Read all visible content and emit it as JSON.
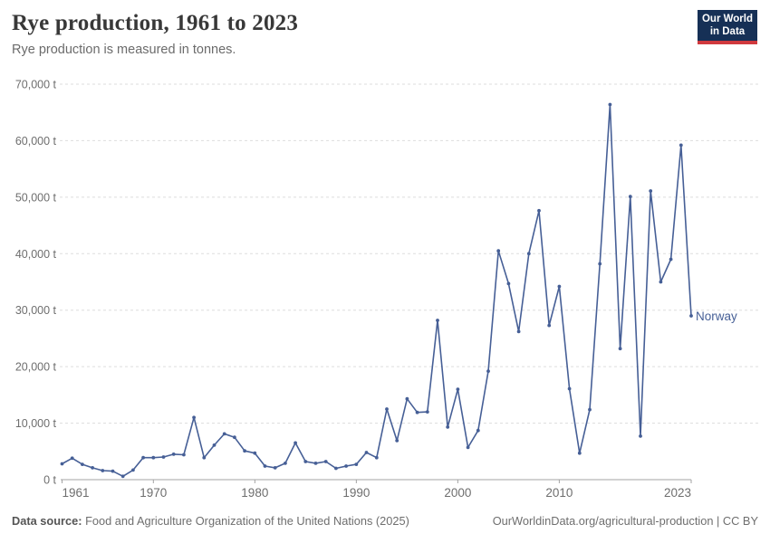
{
  "header": {
    "title": "Rye production, 1961 to 2023",
    "subtitle": "Rye production is measured in tonnes."
  },
  "logo": {
    "line1": "Our World",
    "line2": "in Data"
  },
  "annotations": {
    "entity_label": "Norway"
  },
  "footer": {
    "source_label": "Data source:",
    "source_text": " Food and Agriculture Organization of the United Nations (2025)",
    "right_text": "OurWorldinData.org/agricultural-production | CC BY"
  },
  "colors": {
    "line": "#465F96",
    "entity_label": "#465F96",
    "logo_background": "#163056",
    "logo_stripe": "#d0393e",
    "gridline": "#dddddd",
    "axis": "#a3a3a3",
    "tick_text": "#6e6e6e"
  },
  "chart_data": {
    "type": "line",
    "title": "Rye production, 1961 to 2023",
    "subtitle": "Rye production is measured in tonnes.",
    "unit": "tonnes",
    "xlabel": "",
    "ylabel": "",
    "ylim": [
      0,
      70000
    ],
    "grid": "horizontal-dashed",
    "legend_position": "end-of-line-label",
    "x": [
      1961,
      1962,
      1963,
      1964,
      1965,
      1966,
      1967,
      1968,
      1969,
      1970,
      1971,
      1972,
      1973,
      1974,
      1975,
      1976,
      1977,
      1978,
      1979,
      1980,
      1981,
      1982,
      1983,
      1984,
      1985,
      1986,
      1987,
      1988,
      1989,
      1990,
      1991,
      1992,
      1993,
      1994,
      1995,
      1996,
      1997,
      1998,
      1999,
      2000,
      2001,
      2002,
      2003,
      2004,
      2005,
      2006,
      2007,
      2008,
      2009,
      2010,
      2011,
      2012,
      2013,
      2014,
      2015,
      2016,
      2017,
      2018,
      2019,
      2020,
      2021,
      2022,
      2023
    ],
    "series": [
      {
        "name": "Norway",
        "color": "#465F96",
        "values": [
          2800,
          3800,
          2700,
          2100,
          1600,
          1500,
          600,
          1700,
          3900,
          3900,
          4000,
          4500,
          4400,
          11000,
          3900,
          6100,
          8100,
          7500,
          5100,
          4700,
          2400,
          2100,
          2900,
          6500,
          3200,
          2900,
          3200,
          2000,
          2400,
          2700,
          4800,
          3900,
          12500,
          6900,
          14300,
          11900,
          12000,
          28200,
          9300,
          16000,
          5700,
          8700,
          19200,
          40500,
          34700,
          26200,
          40000,
          47600,
          27300,
          34200,
          16100,
          4700,
          12400,
          38200,
          66400,
          23200,
          50100,
          7700,
          51100,
          35000,
          39000,
          59200,
          29000
        ]
      }
    ],
    "yticks": [
      {
        "value": 0,
        "label": "0 t"
      },
      {
        "value": 10000,
        "label": "10,000 t"
      },
      {
        "value": 20000,
        "label": "20,000 t"
      },
      {
        "value": 30000,
        "label": "30,000 t"
      },
      {
        "value": 40000,
        "label": "40,000 t"
      },
      {
        "value": 50000,
        "label": "50,000 t"
      },
      {
        "value": 60000,
        "label": "60,000 t"
      },
      {
        "value": 70000,
        "label": "70,000 t"
      }
    ],
    "xticks": [
      {
        "value": 1961,
        "label": "1961"
      },
      {
        "value": 1970,
        "label": "1970"
      },
      {
        "value": 1980,
        "label": "1980"
      },
      {
        "value": 1990,
        "label": "1990"
      },
      {
        "value": 2000,
        "label": "2000"
      },
      {
        "value": 2010,
        "label": "2010"
      },
      {
        "value": 2023,
        "label": "2023"
      }
    ]
  }
}
